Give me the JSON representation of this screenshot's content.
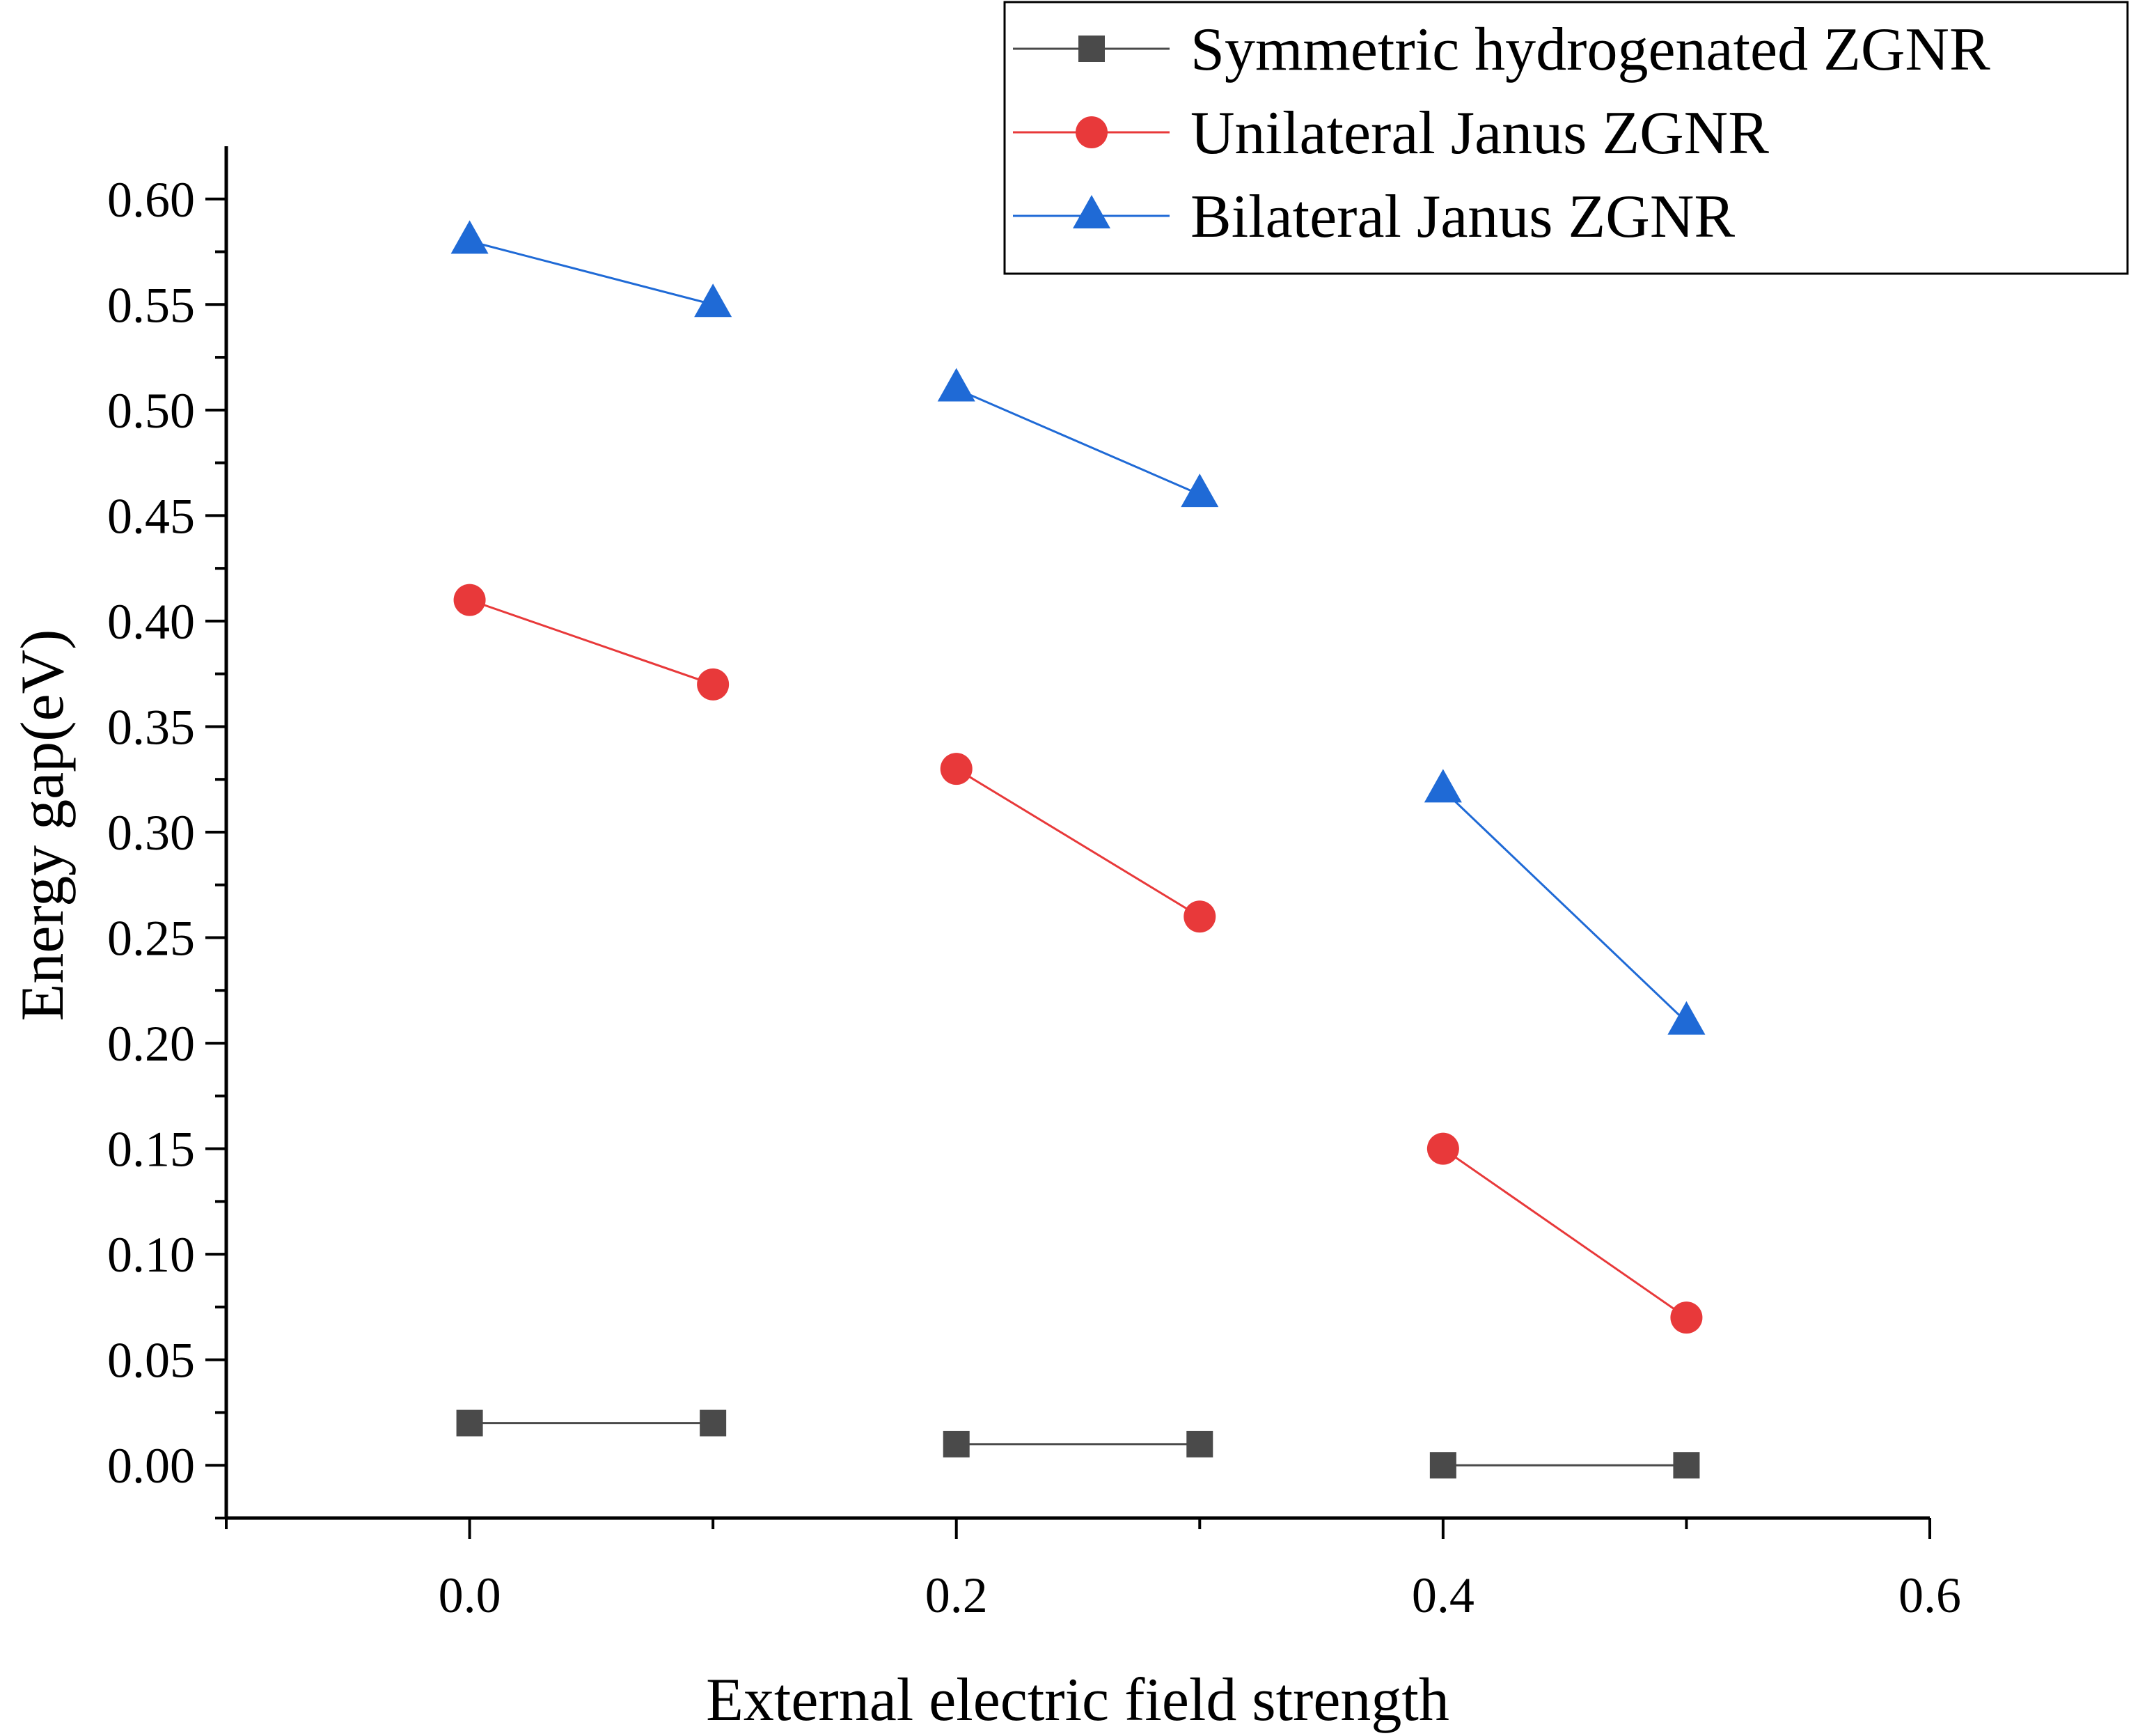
{
  "chart_data": {
    "type": "line",
    "title": "",
    "xlabel": "External electric field strength",
    "ylabel": "Energy gap(eV)",
    "xlim": [
      -0.1,
      0.6
    ],
    "ylim": [
      -0.025,
      0.625
    ],
    "x_ticks": [
      "0.0",
      "0.2",
      "0.4",
      "0.6"
    ],
    "y_ticks": [
      "0.00",
      "0.05",
      "0.10",
      "0.15",
      "0.20",
      "0.25",
      "0.30",
      "0.35",
      "0.40",
      "0.45",
      "0.50",
      "0.55",
      "0.60"
    ],
    "legend_position": "top-right",
    "grid": false,
    "series": [
      {
        "name": "Symmetric hydrogenated ZGNR",
        "color": "#4a4a4a",
        "marker": "square",
        "segments": [
          [
            {
              "x": 0.0,
              "y": 0.02
            },
            {
              "x": 0.1,
              "y": 0.02
            }
          ],
          [
            {
              "x": 0.2,
              "y": 0.01
            },
            {
              "x": 0.3,
              "y": 0.01
            }
          ],
          [
            {
              "x": 0.4,
              "y": 0.0
            },
            {
              "x": 0.5,
              "y": 0.0
            }
          ]
        ]
      },
      {
        "name": "Unilateral Janus ZGNR",
        "color": "#e8393a",
        "marker": "circle",
        "segments": [
          [
            {
              "x": 0.0,
              "y": 0.41
            },
            {
              "x": 0.1,
              "y": 0.37
            }
          ],
          [
            {
              "x": 0.2,
              "y": 0.33
            },
            {
              "x": 0.3,
              "y": 0.26
            }
          ],
          [
            {
              "x": 0.4,
              "y": 0.15
            },
            {
              "x": 0.5,
              "y": 0.07
            }
          ]
        ]
      },
      {
        "name": "Bilateral Janus ZGNR",
        "color": "#1f6ad6",
        "marker": "triangle",
        "segments": [
          [
            {
              "x": 0.0,
              "y": 0.58
            },
            {
              "x": 0.1,
              "y": 0.55
            }
          ],
          [
            {
              "x": 0.2,
              "y": 0.51
            },
            {
              "x": 0.3,
              "y": 0.46
            }
          ],
          [
            {
              "x": 0.4,
              "y": 0.32
            },
            {
              "x": 0.5,
              "y": 0.21
            }
          ]
        ]
      }
    ]
  }
}
